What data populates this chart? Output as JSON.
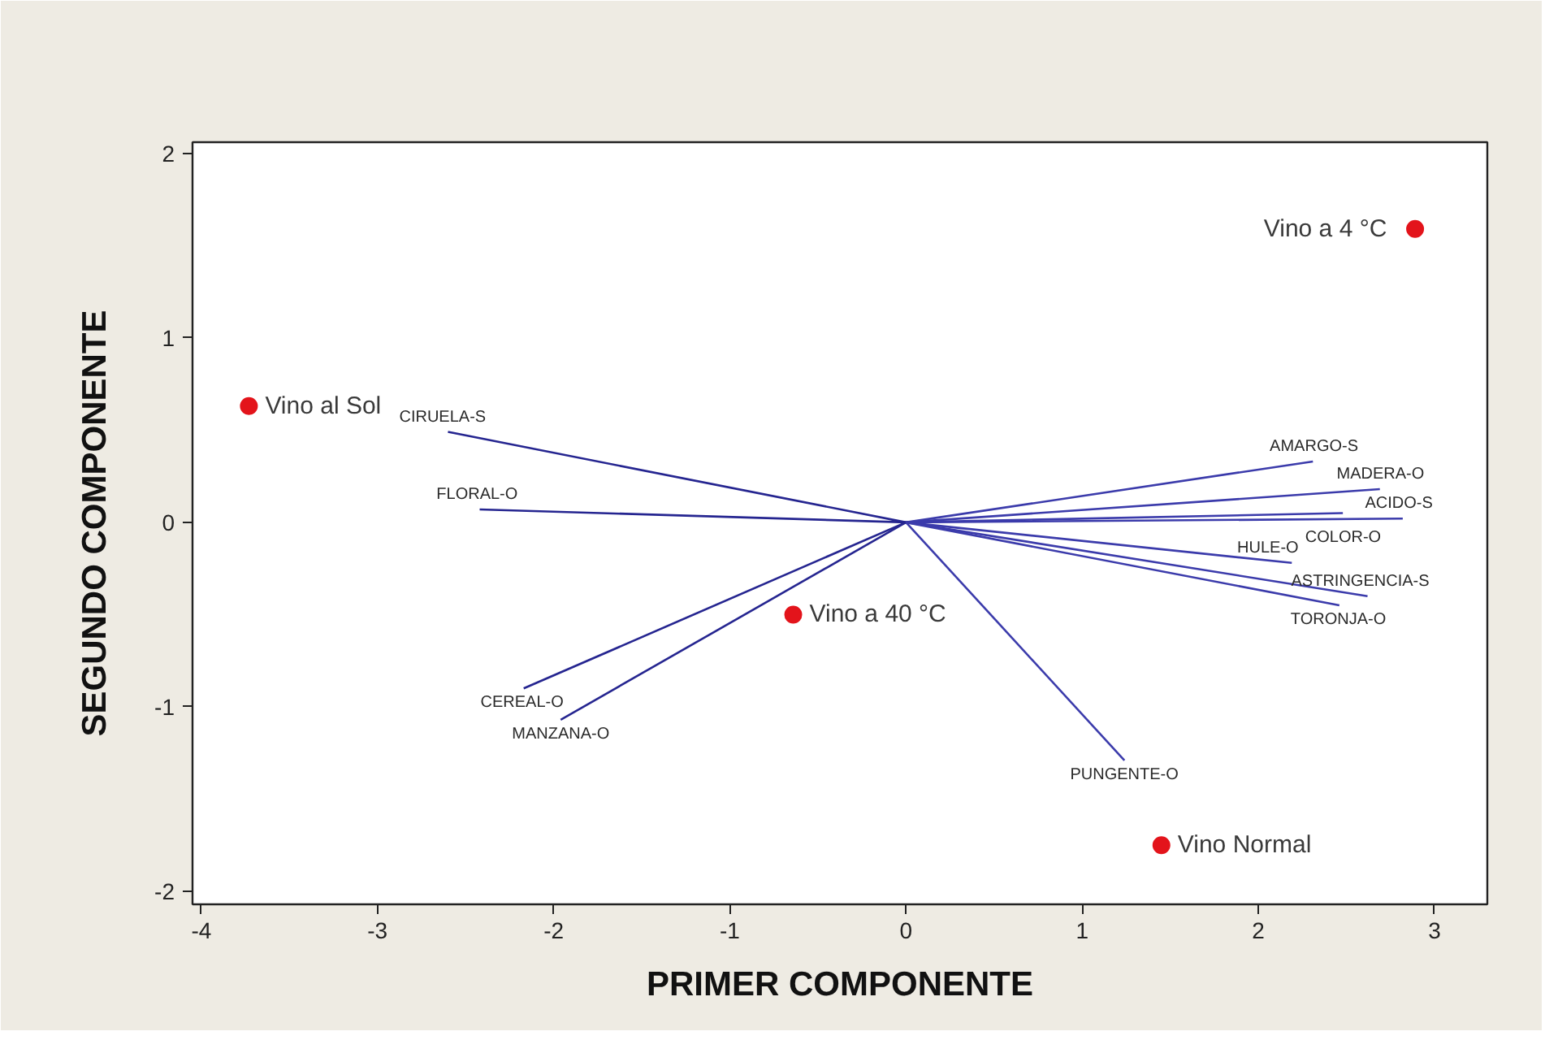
{
  "chart_data": {
    "type": "scatter",
    "xlabel": "PRIMER COMPONENTE",
    "ylabel": "SEGUNDO COMPONENTE",
    "xlim": [
      -4.05,
      3.3
    ],
    "ylim": [
      -2.07,
      2.06
    ],
    "xticks": [
      -4,
      -3,
      -2,
      -1,
      0,
      1,
      2,
      3
    ],
    "yticks": [
      -2,
      -1,
      0,
      1,
      2
    ],
    "series": [
      {
        "name": "Vino al Sol",
        "marker": "circle",
        "color": "#e3141b",
        "x": [
          -3.73
        ],
        "values": [
          0.63
        ]
      },
      {
        "name": "Vino a 4 °C",
        "marker": "circle",
        "color": "#e3141b",
        "x": [
          2.89
        ],
        "values": [
          1.59
        ]
      },
      {
        "name": "Vino a 40 °C",
        "marker": "circle",
        "color": "#e3141b",
        "x": [
          -0.64
        ],
        "values": [
          -0.5
        ]
      },
      {
        "name": "Vino Normal",
        "marker": "circle",
        "color": "#e3141b",
        "x": [
          1.45
        ],
        "values": [
          -1.75
        ]
      },
      {
        "name": "CIRUELA-S",
        "type": "line",
        "color": "#252590",
        "x": [
          0,
          -2.6
        ],
        "values": [
          0,
          0.49
        ]
      },
      {
        "name": "FLORAL-O",
        "type": "line",
        "color": "#252590",
        "x": [
          0,
          -2.42
        ],
        "values": [
          0,
          0.07
        ]
      },
      {
        "name": "CEREAL-O",
        "type": "line",
        "color": "#252590",
        "x": [
          0,
          -2.17
        ],
        "values": [
          0,
          -0.9
        ]
      },
      {
        "name": "MANZANA-O",
        "type": "line",
        "color": "#252590",
        "x": [
          0,
          -1.96
        ],
        "values": [
          0,
          -1.07
        ]
      },
      {
        "name": "PUNGENTE-O",
        "type": "line",
        "color": "#3b3bab",
        "x": [
          0,
          1.24
        ],
        "values": [
          0,
          -1.29
        ]
      },
      {
        "name": "AMARGO-S",
        "type": "line",
        "color": "#3b3bab",
        "x": [
          0,
          2.31
        ],
        "values": [
          0,
          0.33
        ]
      },
      {
        "name": "MADERA-O",
        "type": "line",
        "color": "#3b3bab",
        "x": [
          0,
          2.69
        ],
        "values": [
          0,
          0.18
        ]
      },
      {
        "name": "COLOR-O",
        "type": "line",
        "color": "#3b3bab",
        "x": [
          0,
          2.48
        ],
        "values": [
          0,
          0.05
        ]
      },
      {
        "name": "ACIDO-S",
        "type": "line",
        "color": "#3b3bab",
        "x": [
          0,
          2.82
        ],
        "values": [
          0,
          0.02
        ]
      },
      {
        "name": "HULE-O",
        "type": "line",
        "color": "#3b3bab",
        "x": [
          0,
          2.19
        ],
        "values": [
          0,
          -0.22
        ]
      },
      {
        "name": "ASTRINGENCIA-S",
        "type": "line",
        "color": "#3b3bab",
        "x": [
          0,
          2.62
        ],
        "values": [
          0,
          -0.4
        ]
      },
      {
        "name": "TORONJA-O",
        "type": "line",
        "color": "#3b3bab",
        "x": [
          0,
          2.46
        ],
        "values": [
          0,
          -0.45
        ]
      }
    ]
  }
}
